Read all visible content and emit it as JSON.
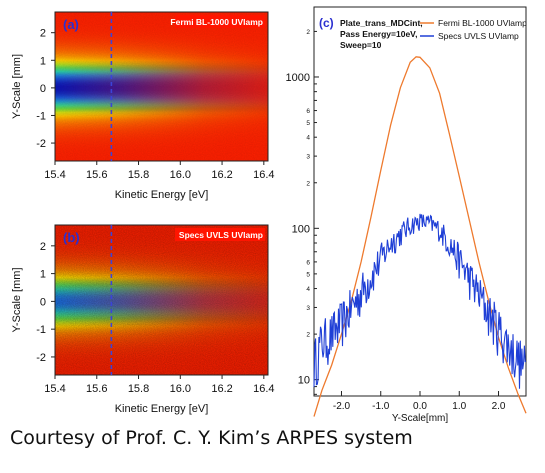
{
  "caption": "Courtesy of Prof. C. Y. Kim’s ARPES system",
  "colors": {
    "fermi": "#ee7a2e",
    "specs": "#1f3fd6",
    "cursor": "#3b43d8",
    "tag_bg": "#ff1500",
    "tag_text": "#2a2fd0"
  },
  "chart_data": [
    {
      "type": "heatmap",
      "panel_label": "(a)",
      "tag": "Fermi BL-1000 UVlamp",
      "xlabel": "Kinetic Energy [eV]",
      "ylabel": "Y-Scale [mm]",
      "xlim": [
        15.4,
        16.42
      ],
      "ylim": [
        -2.65,
        2.75
      ],
      "xticks": [
        "15.4",
        "15.6",
        "15.8",
        "16.0",
        "16.2",
        "16.4"
      ],
      "yticks": [
        "-2",
        "-1",
        "0",
        "1",
        "2"
      ],
      "cursor_x": 15.67,
      "colormap": "rainbow (blue = high counts, red = low)",
      "noise": "smooth"
    },
    {
      "type": "heatmap",
      "panel_label": "(b)",
      "tag": "Specs UVLS UVlamp",
      "xlabel": "Kinetic Energy [eV]",
      "ylabel": "Y-Scale [mm]",
      "xlim": [
        15.4,
        16.42
      ],
      "ylim": [
        -2.65,
        2.75
      ],
      "xticks": [
        "15.4",
        "15.6",
        "15.8",
        "16.0",
        "16.2",
        "16.4"
      ],
      "yticks": [
        "-2",
        "-1",
        "0",
        "1",
        "2"
      ],
      "cursor_x": 15.67,
      "colormap": "rainbow (blue = high counts, red = low)",
      "noise": "grainy"
    },
    {
      "type": "line",
      "panel_label": "(c)",
      "annotation": [
        "Plate_trans_MDCint,",
        "Pass Energy=10eV,",
        "Sweep=10"
      ],
      "xlabel": "Y-Scale[mm]",
      "xlim": [
        -2.7,
        2.7
      ],
      "ylim": [
        7.8,
        2900
      ],
      "yscale": "log",
      "xticks": [
        "-2.0",
        "-1.0",
        "0.0",
        "1.0",
        "2.0"
      ],
      "yticks": [
        "10",
        "100",
        "1000"
      ],
      "legend": "top-right",
      "series": [
        {
          "name": "Fermi BL-1000 UVlamp",
          "x": [
            -2.7,
            -2.5,
            -2.25,
            -2.0,
            -1.75,
            -1.5,
            -1.25,
            -1.0,
            -0.75,
            -0.5,
            -0.25,
            -0.1,
            0.0,
            0.25,
            0.5,
            0.75,
            1.0,
            1.25,
            1.5,
            1.75,
            2.0,
            2.25,
            2.5,
            2.7
          ],
          "y": [
            5.7,
            8.5,
            12.5,
            20,
            33,
            60,
            118,
            240,
            480,
            850,
            1250,
            1360,
            1350,
            1150,
            780,
            420,
            220,
            115,
            60,
            33,
            19,
            12,
            8,
            6
          ]
        },
        {
          "name": "Specs UVLS UVlamp",
          "x": [
            -2.7,
            -2.5,
            -2.25,
            -2.0,
            -1.75,
            -1.5,
            -1.25,
            -1.0,
            -0.75,
            -0.5,
            -0.25,
            0.0,
            0.25,
            0.5,
            0.75,
            1.0,
            1.25,
            1.5,
            1.75,
            2.0,
            2.25,
            2.5,
            2.7
          ],
          "y": [
            13,
            18,
            20,
            24,
            30,
            38,
            48,
            63,
            80,
            92,
            105,
            112,
            108,
            98,
            80,
            62,
            48,
            37,
            28,
            22,
            17,
            14,
            12
          ]
        }
      ]
    }
  ]
}
